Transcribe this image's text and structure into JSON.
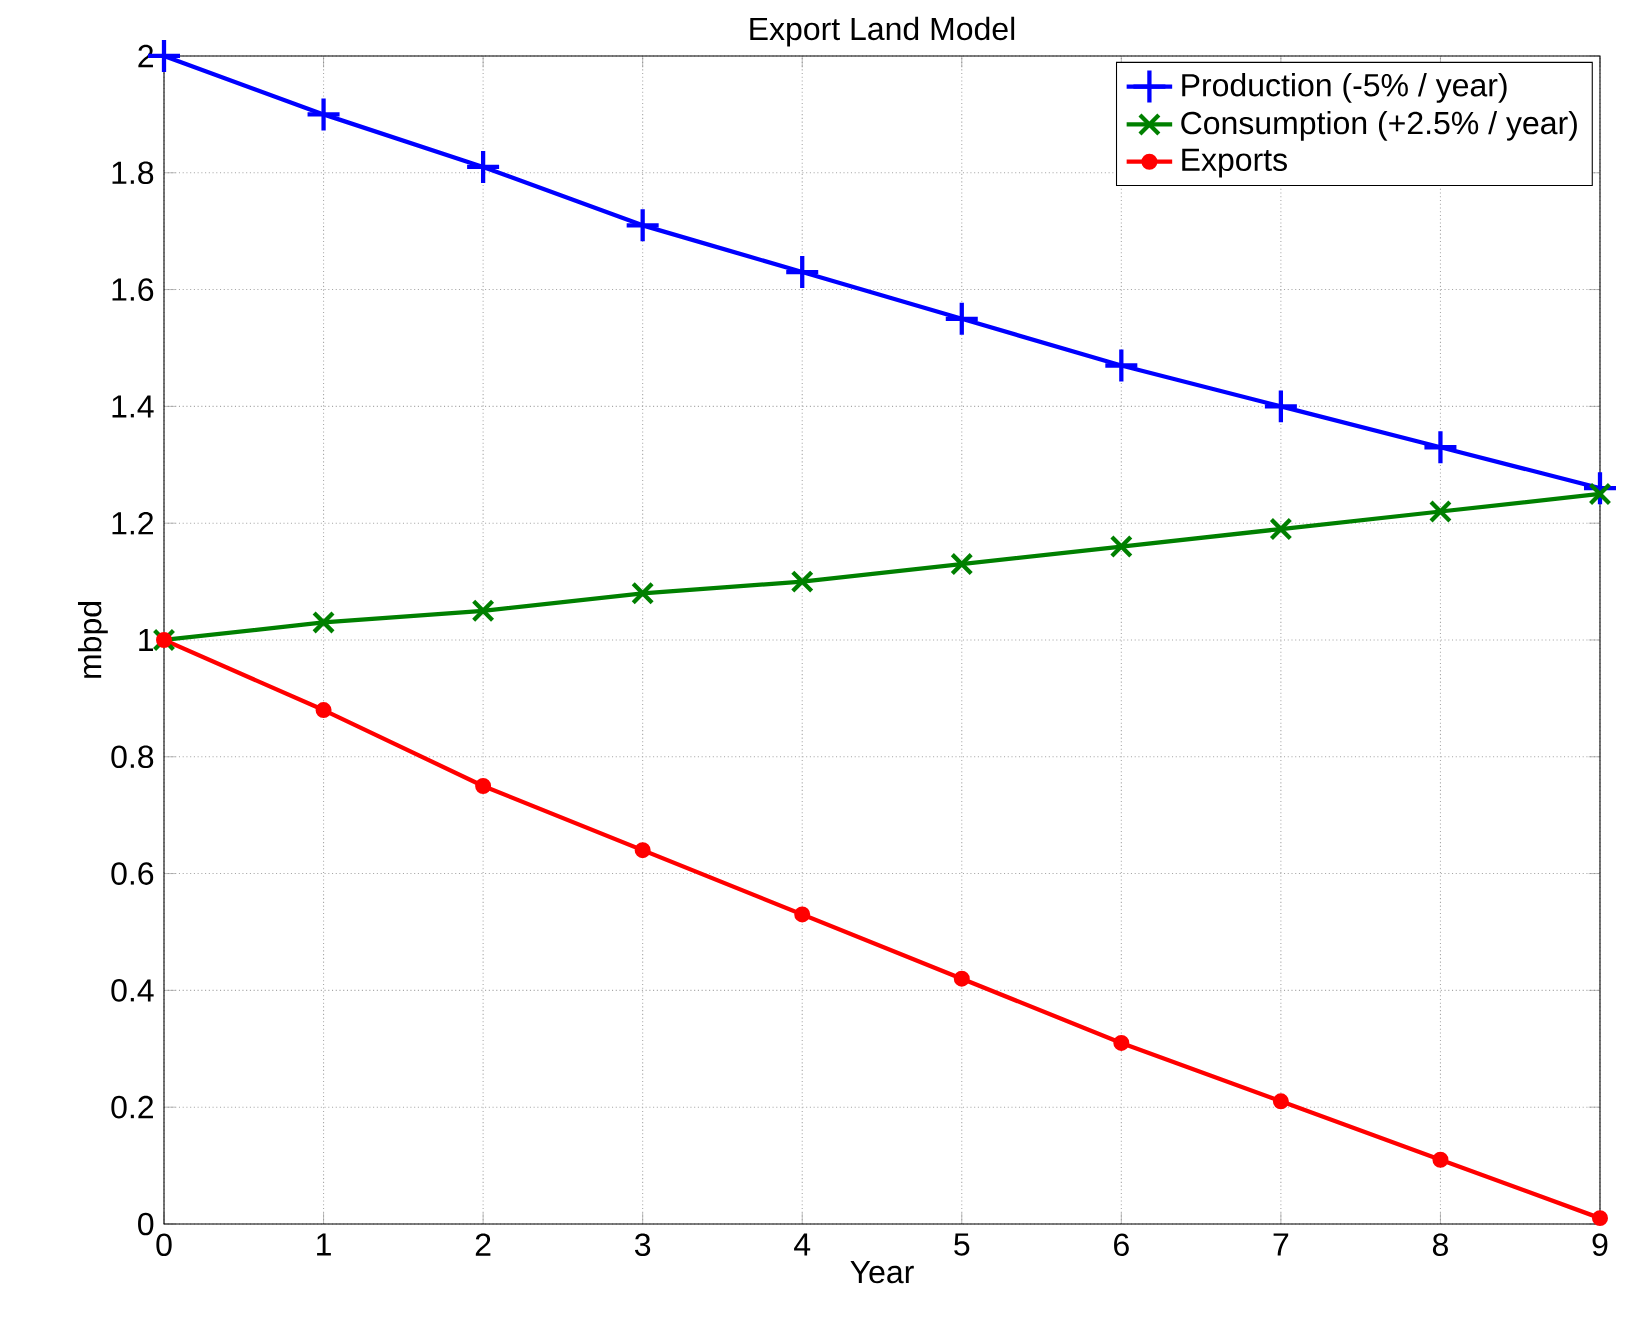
{
  "chart_data": {
    "type": "line",
    "title": "Export Land Model",
    "xlabel": "Year",
    "ylabel": "mbpd",
    "x": [
      0,
      1,
      2,
      3,
      4,
      5,
      6,
      7,
      8,
      9
    ],
    "series": [
      {
        "name": "Production (-5% / year)",
        "color": "#0000ff",
        "marker": "plus",
        "values": [
          2,
          1.9,
          1.81,
          1.71,
          1.63,
          1.55,
          1.47,
          1.4,
          1.33,
          1.26
        ]
      },
      {
        "name": "Consumption (+2.5% / year)",
        "color": "#008000",
        "marker": "cross",
        "values": [
          1,
          1.03,
          1.05,
          1.08,
          1.1,
          1.13,
          1.16,
          1.19,
          1.22,
          1.25
        ]
      },
      {
        "name": "Exports",
        "color": "#ff0000",
        "marker": "circle",
        "values": [
          1,
          0.88,
          0.75,
          0.64,
          0.53,
          0.42,
          0.31,
          0.21,
          0.11,
          0.01
        ]
      }
    ],
    "xlim": [
      0,
      9
    ],
    "ylim": [
      0,
      2
    ],
    "xticks": [
      0,
      1,
      2,
      3,
      4,
      5,
      6,
      7,
      8,
      9
    ],
    "yticks": [
      0,
      0.2,
      0.4,
      0.6,
      0.8,
      1,
      1.2,
      1.4,
      1.6,
      1.8,
      2
    ],
    "grid": true,
    "legend": "top right",
    "line_style": "solid"
  }
}
